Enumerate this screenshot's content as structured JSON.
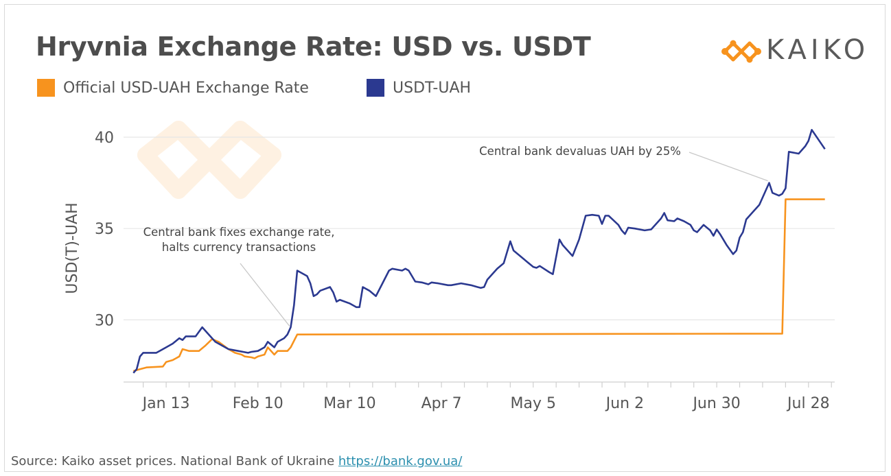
{
  "title": "Hryvnia Exchange Rate: USD vs. USDT",
  "brand": {
    "name": "KAIKO",
    "accent": "#f7931e",
    "text_color": "#5a5a5a"
  },
  "source": {
    "text": "Source: Kaiko asset prices. National Bank of Ukraine",
    "link_text": "https://bank.gov.ua/"
  },
  "chart_data": {
    "type": "line",
    "title": "Hryvnia Exchange Rate: USD vs. USDT",
    "xlabel": "",
    "ylabel": "USD(T)-UAH",
    "x_ticks": [
      "Jan 13",
      "Feb 10",
      "Mar 10",
      "Apr 7",
      "May 5",
      "Jun 2",
      "Jun 30",
      "Jul 28"
    ],
    "x_tick_dates": [
      "2022-01-13",
      "2022-02-10",
      "2022-03-10",
      "2022-04-07",
      "2022-05-05",
      "2022-06-02",
      "2022-06-30",
      "2022-07-28"
    ],
    "y_ticks": [
      30,
      35,
      40
    ],
    "ylim": [
      26.6,
      41.2
    ],
    "xlim": [
      "2021-12-31",
      "2022-08-05"
    ],
    "grid": "horizontal",
    "legend_position": "top-left",
    "series": [
      {
        "name": "Official USD-UAH Exchange Rate",
        "color": "#f7931e",
        "points": [
          [
            "2022-01-03",
            27.2
          ],
          [
            "2022-01-05",
            27.3
          ],
          [
            "2022-01-07",
            27.4
          ],
          [
            "2022-01-12",
            27.45
          ],
          [
            "2022-01-13",
            27.7
          ],
          [
            "2022-01-15",
            27.8
          ],
          [
            "2022-01-17",
            28.0
          ],
          [
            "2022-01-18",
            28.4
          ],
          [
            "2022-01-20",
            28.3
          ],
          [
            "2022-01-23",
            28.3
          ],
          [
            "2022-01-25",
            28.6
          ],
          [
            "2022-01-27",
            28.95
          ],
          [
            "2022-01-29",
            28.8
          ],
          [
            "2022-02-01",
            28.4
          ],
          [
            "2022-02-03",
            28.2
          ],
          [
            "2022-02-05",
            28.1
          ],
          [
            "2022-02-06",
            28.0
          ],
          [
            "2022-02-08",
            27.95
          ],
          [
            "2022-02-09",
            27.9
          ],
          [
            "2022-02-10",
            28.0
          ],
          [
            "2022-02-12",
            28.1
          ],
          [
            "2022-02-13",
            28.5
          ],
          [
            "2022-02-15",
            28.1
          ],
          [
            "2022-02-16",
            28.3
          ],
          [
            "2022-02-19",
            28.3
          ],
          [
            "2022-02-20",
            28.5
          ],
          [
            "2022-02-22",
            29.2
          ],
          [
            "2022-07-20",
            29.25
          ],
          [
            "2022-07-21",
            36.6
          ],
          [
            "2022-08-02",
            36.6
          ]
        ]
      },
      {
        "name": "USDT-UAH",
        "color": "#2b3990",
        "points": [
          [
            "2022-01-03",
            27.1
          ],
          [
            "2022-01-04",
            27.3
          ],
          [
            "2022-01-05",
            28.0
          ],
          [
            "2022-01-06",
            28.2
          ],
          [
            "2022-01-10",
            28.2
          ],
          [
            "2022-01-11",
            28.3
          ],
          [
            "2022-01-13",
            28.5
          ],
          [
            "2022-01-15",
            28.7
          ],
          [
            "2022-01-17",
            29.0
          ],
          [
            "2022-01-18",
            28.9
          ],
          [
            "2022-01-19",
            29.1
          ],
          [
            "2022-01-22",
            29.1
          ],
          [
            "2022-01-24",
            29.6
          ],
          [
            "2022-01-26",
            29.2
          ],
          [
            "2022-01-28",
            28.8
          ],
          [
            "2022-02-01",
            28.4
          ],
          [
            "2022-02-04",
            28.3
          ],
          [
            "2022-02-07",
            28.2
          ],
          [
            "2022-02-08",
            28.25
          ],
          [
            "2022-02-10",
            28.3
          ],
          [
            "2022-02-12",
            28.5
          ],
          [
            "2022-02-13",
            28.8
          ],
          [
            "2022-02-15",
            28.5
          ],
          [
            "2022-02-16",
            28.8
          ],
          [
            "2022-02-18",
            29.0
          ],
          [
            "2022-02-19",
            29.2
          ],
          [
            "2022-02-20",
            29.6
          ],
          [
            "2022-02-21",
            30.8
          ],
          [
            "2022-02-22",
            32.7
          ],
          [
            "2022-02-25",
            32.4
          ],
          [
            "2022-02-26",
            32.0
          ],
          [
            "2022-02-27",
            31.3
          ],
          [
            "2022-02-28",
            31.4
          ],
          [
            "2022-03-01",
            31.6
          ],
          [
            "2022-03-04",
            31.8
          ],
          [
            "2022-03-05",
            31.5
          ],
          [
            "2022-03-06",
            31.0
          ],
          [
            "2022-03-07",
            31.1
          ],
          [
            "2022-03-10",
            30.9
          ],
          [
            "2022-03-12",
            30.7
          ],
          [
            "2022-03-13",
            30.7
          ],
          [
            "2022-03-14",
            31.8
          ],
          [
            "2022-03-16",
            31.6
          ],
          [
            "2022-03-18",
            31.3
          ],
          [
            "2022-03-20",
            32.0
          ],
          [
            "2022-03-22",
            32.7
          ],
          [
            "2022-03-23",
            32.8
          ],
          [
            "2022-03-26",
            32.7
          ],
          [
            "2022-03-27",
            32.8
          ],
          [
            "2022-03-28",
            32.7
          ],
          [
            "2022-03-30",
            32.1
          ],
          [
            "2022-04-01",
            32.05
          ],
          [
            "2022-04-03",
            31.95
          ],
          [
            "2022-04-04",
            32.05
          ],
          [
            "2022-04-06",
            32.0
          ],
          [
            "2022-04-09",
            31.9
          ],
          [
            "2022-04-10",
            31.9
          ],
          [
            "2022-04-13",
            32.0
          ],
          [
            "2022-04-16",
            31.9
          ],
          [
            "2022-04-18",
            31.8
          ],
          [
            "2022-04-19",
            31.75
          ],
          [
            "2022-04-20",
            31.8
          ],
          [
            "2022-04-21",
            32.2
          ],
          [
            "2022-04-24",
            32.8
          ],
          [
            "2022-04-26",
            33.1
          ],
          [
            "2022-04-28",
            34.3
          ],
          [
            "2022-04-29",
            33.8
          ],
          [
            "2022-05-01",
            33.5
          ],
          [
            "2022-05-03",
            33.2
          ],
          [
            "2022-05-05",
            32.9
          ],
          [
            "2022-05-06",
            32.85
          ],
          [
            "2022-05-07",
            32.95
          ],
          [
            "2022-05-10",
            32.6
          ],
          [
            "2022-05-11",
            32.5
          ],
          [
            "2022-05-13",
            34.4
          ],
          [
            "2022-05-14",
            34.1
          ],
          [
            "2022-05-17",
            33.5
          ],
          [
            "2022-05-19",
            34.4
          ],
          [
            "2022-05-21",
            35.7
          ],
          [
            "2022-05-23",
            35.75
          ],
          [
            "2022-05-25",
            35.7
          ],
          [
            "2022-05-26",
            35.25
          ],
          [
            "2022-05-27",
            35.7
          ],
          [
            "2022-05-28",
            35.7
          ],
          [
            "2022-05-31",
            35.2
          ],
          [
            "2022-06-01",
            34.9
          ],
          [
            "2022-06-02",
            34.7
          ],
          [
            "2022-06-03",
            35.05
          ],
          [
            "2022-06-05",
            35.0
          ],
          [
            "2022-06-08",
            34.9
          ],
          [
            "2022-06-10",
            34.95
          ],
          [
            "2022-06-13",
            35.55
          ],
          [
            "2022-06-14",
            35.85
          ],
          [
            "2022-06-15",
            35.45
          ],
          [
            "2022-06-17",
            35.4
          ],
          [
            "2022-06-18",
            35.55
          ],
          [
            "2022-06-20",
            35.4
          ],
          [
            "2022-06-22",
            35.2
          ],
          [
            "2022-06-23",
            34.9
          ],
          [
            "2022-06-24",
            34.8
          ],
          [
            "2022-06-26",
            35.2
          ],
          [
            "2022-06-28",
            34.9
          ],
          [
            "2022-06-29",
            34.6
          ],
          [
            "2022-06-30",
            34.95
          ],
          [
            "2022-07-01",
            34.7
          ],
          [
            "2022-07-03",
            34.1
          ],
          [
            "2022-07-05",
            33.6
          ],
          [
            "2022-07-06",
            33.8
          ],
          [
            "2022-07-07",
            34.5
          ],
          [
            "2022-07-08",
            34.8
          ],
          [
            "2022-07-09",
            35.5
          ],
          [
            "2022-07-11",
            35.9
          ],
          [
            "2022-07-13",
            36.3
          ],
          [
            "2022-07-14",
            36.7
          ],
          [
            "2022-07-16",
            37.5
          ],
          [
            "2022-07-17",
            36.95
          ],
          [
            "2022-07-19",
            36.8
          ],
          [
            "2022-07-20",
            36.9
          ],
          [
            "2022-07-21",
            37.2
          ],
          [
            "2022-07-22",
            39.2
          ],
          [
            "2022-07-25",
            39.1
          ],
          [
            "2022-07-27",
            39.5
          ],
          [
            "2022-07-28",
            39.8
          ],
          [
            "2022-07-29",
            40.4
          ],
          [
            "2022-08-02",
            39.35
          ]
        ]
      }
    ],
    "annotations": [
      {
        "lines": [
          "Central bank fixes exchange rate,",
          "halts currency transactions"
        ],
        "target": [
          "2022-02-20",
          29.6
        ]
      },
      {
        "lines": [
          "Central bank devaluas UAH by 25%"
        ],
        "target": [
          "2022-07-16",
          37.5
        ]
      }
    ]
  }
}
